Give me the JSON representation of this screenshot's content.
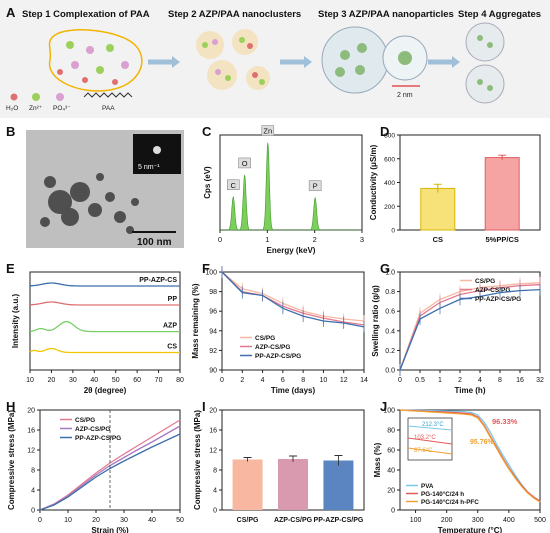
{
  "panelA": {
    "letter": "A",
    "steps": [
      "Step 1 Complexation of PAA",
      "Step 2 AZP/PAA nanoclusters",
      "Step 3 AZP/PAA nanoparticles",
      "Step 4 Aggregates"
    ],
    "legend": [
      "H₂O",
      "Zn²⁺",
      "PO₄³⁻",
      "PAA"
    ],
    "scale": "2 nm"
  },
  "panelB": {
    "letter": "B",
    "inset_label": "5 nm⁻¹",
    "scale": "100 nm"
  },
  "colors": {
    "cs": "#f4a582",
    "azp": "#d6604d",
    "pp": "#4a7ab5",
    "green": "#5cc05c",
    "yellow": "#f2c500",
    "orange": "#f39a3c",
    "pink": "#e26a88"
  },
  "chart_data": [
    {
      "id": "C",
      "type": "line",
      "title": "",
      "xlabel": "Energy (keV)",
      "ylabel": "Cps (eV)",
      "xlim": [
        0,
        3
      ],
      "xticks": [
        "0",
        "1",
        "2",
        "3"
      ],
      "peak_labels": [
        {
          "label": "C",
          "x": 0.28
        },
        {
          "label": "O",
          "x": 0.52
        },
        {
          "label": "Zn",
          "x": 1.01
        },
        {
          "label": "P",
          "x": 2.01
        }
      ],
      "peaks": [
        {
          "x": 0.28,
          "y": 0.38
        },
        {
          "x": 0.52,
          "y": 0.63
        },
        {
          "x": 1.01,
          "y": 1.0
        },
        {
          "x": 2.01,
          "y": 0.37
        }
      ]
    },
    {
      "id": "D",
      "type": "bar",
      "xlabel": "",
      "ylabel": "Conductivity (μS/m)",
      "categories": [
        "CS",
        "5%PP/CS"
      ],
      "values": [
        350,
        610
      ],
      "errors": [
        35,
        20
      ],
      "ylim": [
        0,
        800
      ]
    },
    {
      "id": "E",
      "type": "line",
      "xlabel": "2θ (degree)",
      "ylabel": "Intensity (a.u.)",
      "xlim": [
        10,
        80
      ],
      "xticks": [
        "10",
        "20",
        "30",
        "40",
        "50",
        "60",
        "70",
        "80"
      ],
      "series": [
        {
          "name": "PP-AZP-CS",
          "offset": 4
        },
        {
          "name": "PP",
          "offset": 3
        },
        {
          "name": "AZP",
          "offset": 1.6
        },
        {
          "name": "CS",
          "offset": 0.5
        }
      ]
    },
    {
      "id": "F",
      "type": "line",
      "xlabel": "Time (days)",
      "ylabel": "Mass remaining (%)",
      "xlim": [
        0,
        14
      ],
      "ylim": [
        90,
        100
      ],
      "xticks": [
        "0",
        "2",
        "4",
        "6",
        "8",
        "10",
        "12",
        "14"
      ],
      "yticks": [
        "90",
        "92",
        "94",
        "96",
        "98",
        "100"
      ],
      "x": [
        0,
        2,
        4,
        6,
        8,
        10,
        12,
        14
      ],
      "series": [
        {
          "name": "CS/PG",
          "values": [
            100,
            98.3,
            97.8,
            96.8,
            96.0,
            95.5,
            95.2,
            95.0
          ]
        },
        {
          "name": "AZP-CS/PG",
          "values": [
            100,
            98.0,
            97.6,
            96.5,
            95.8,
            95.3,
            94.9,
            94.6
          ]
        },
        {
          "name": "PP-AZP-CS/PG",
          "values": [
            100,
            97.9,
            97.6,
            96.3,
            95.5,
            95.0,
            94.8,
            94.4
          ]
        }
      ]
    },
    {
      "id": "G",
      "type": "line",
      "xlabel": "Time (h)",
      "ylabel": "Swelling ratio (g/g)",
      "ylim": [
        0,
        1.0
      ],
      "xticks": [
        "0",
        "0.5",
        "1",
        "2",
        "4",
        "8",
        "16",
        "32"
      ],
      "yticks": [
        "0.0",
        "0.2",
        "0.4",
        "0.6",
        "0.8",
        "1.0"
      ],
      "series": [
        {
          "name": "CS/PG",
          "values": [
            0,
            0.58,
            0.72,
            0.8,
            0.84,
            0.86,
            0.88,
            0.89
          ]
        },
        {
          "name": "AZP-CS/PG",
          "values": [
            0,
            0.55,
            0.69,
            0.77,
            0.81,
            0.84,
            0.86,
            0.87
          ]
        },
        {
          "name": "PP-AZP-CS/PG",
          "values": [
            0,
            0.52,
            0.63,
            0.72,
            0.75,
            0.79,
            0.81,
            0.82
          ]
        }
      ]
    },
    {
      "id": "H",
      "type": "line",
      "xlabel": "Strain (%)",
      "ylabel": "Compressive stress (MPa)",
      "xlim": [
        0,
        50
      ],
      "ylim": [
        0,
        20
      ],
      "xticks": [
        "0",
        "10",
        "20",
        "30",
        "40",
        "50"
      ],
      "yticks": [
        "0",
        "4",
        "8",
        "12",
        "16",
        "20"
      ],
      "x": [
        0,
        5,
        10,
        15,
        20,
        25,
        30,
        35,
        40,
        45,
        50
      ],
      "series": [
        {
          "name": "CS/PG",
          "values": [
            0,
            1.2,
            3.0,
            5.2,
            7.4,
            9.4,
            11.2,
            12.9,
            14.6,
            16.3,
            18.0
          ]
        },
        {
          "name": "AZP-CS/PG",
          "values": [
            0,
            1.1,
            2.8,
            4.9,
            7.0,
            8.9,
            10.5,
            12.1,
            13.6,
            15.2,
            16.8
          ]
        },
        {
          "name": "PP-AZP-CS/PG",
          "values": [
            0,
            1.0,
            2.6,
            4.6,
            6.6,
            8.3,
            9.8,
            11.2,
            12.6,
            13.9,
            15.2
          ]
        }
      ],
      "vline": 25
    },
    {
      "id": "I",
      "type": "bar",
      "xlabel": "",
      "ylabel": "Compressive stress (MPa)",
      "categories": [
        "CS/PG",
        "AZP-CS/PG",
        "PP-AZP-CS/PG"
      ],
      "values": [
        10.1,
        10.2,
        9.9
      ],
      "errors": [
        0.4,
        0.6,
        1.0
      ],
      "ylim": [
        0,
        20
      ],
      "yticks": [
        "0",
        "4",
        "8",
        "12",
        "16",
        "20"
      ]
    },
    {
      "id": "J",
      "type": "line",
      "xlabel": "Temperature (°C)",
      "ylabel": "Mass (%)",
      "xlim": [
        50,
        500
      ],
      "ylim": [
        0,
        100
      ],
      "xticks": [
        "100",
        "200",
        "300",
        "400",
        "500"
      ],
      "yticks": [
        "0",
        "20",
        "40",
        "60",
        "80",
        "100"
      ],
      "x": [
        50,
        100,
        150,
        200,
        250,
        280,
        300,
        320,
        340,
        360,
        380,
        400,
        420,
        440,
        460,
        480,
        500
      ],
      "series": [
        {
          "name": "PVA",
          "values": [
            100,
            99.6,
            99.3,
            99.0,
            98.5,
            97.5,
            95,
            88,
            78,
            66,
            55,
            45,
            35,
            26,
            18,
            12,
            8
          ]
        },
        {
          "name": "PG-140°C/24 h",
          "values": [
            100,
            99.2,
            98.5,
            97.8,
            97.0,
            96.0,
            93,
            85,
            74,
            63,
            52,
            42,
            33,
            25,
            18,
            13,
            9
          ]
        },
        {
          "name": "PG-140°C/24 h-PFC",
          "values": [
            100,
            99.0,
            98.0,
            97.0,
            96.0,
            95.0,
            92,
            84,
            73,
            62,
            51,
            41,
            32,
            24,
            17,
            12,
            8
          ]
        }
      ],
      "annotations": [
        "96.33%",
        "95.76%"
      ],
      "inset_labels": [
        "212.3°C",
        "103.2°C",
        "87.6°C"
      ]
    }
  ],
  "labels": {
    "C": "C",
    "D": "D",
    "E": "E",
    "F": "F",
    "G": "G",
    "H": "H",
    "I": "I",
    "J": "J"
  }
}
